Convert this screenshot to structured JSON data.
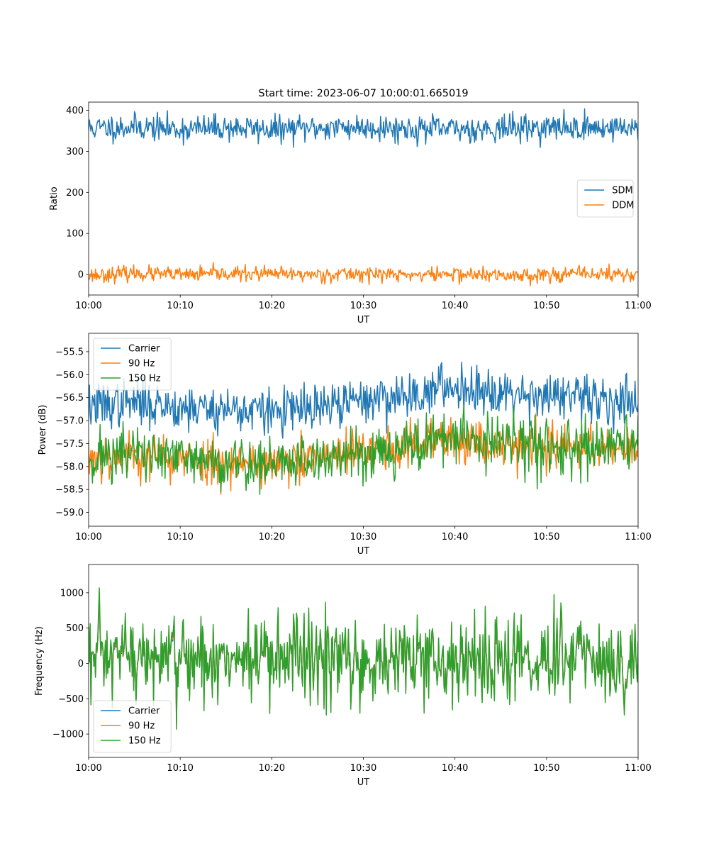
{
  "title": "Start time: 2023-06-07 10:00:01.665019",
  "colors": {
    "blue": "#1f77b4",
    "orange": "#ff7f0e",
    "green": "#2ca02c"
  },
  "x_ticks": [
    "10:00",
    "10:10",
    "10:20",
    "10:30",
    "10:40",
    "10:50",
    "11:00"
  ],
  "chart_data": [
    {
      "type": "line",
      "xlabel": "UT",
      "ylabel": "Ratio",
      "xlim": [
        "10:00",
        "11:00"
      ],
      "ylim": [
        -50,
        420
      ],
      "yticks": [
        0,
        100,
        200,
        300,
        400
      ],
      "ytick_labels": [
        "0",
        "100",
        "200",
        "300",
        "400"
      ],
      "legend": "center-right",
      "grid": false,
      "series": [
        {
          "name": "SDM",
          "color": "#1f77b4",
          "mean": 355,
          "noise": 16,
          "profile": "flat",
          "points": 720,
          "seed": 11,
          "x": [
            "10:00",
            "10:05",
            "10:10",
            "10:15",
            "10:20",
            "10:25",
            "10:30",
            "10:35",
            "10:40",
            "10:45",
            "10:50",
            "10:55",
            "11:00"
          ],
          "values": [
            356,
            360,
            354,
            358,
            353,
            357,
            359,
            355,
            354,
            356,
            358,
            357,
            360
          ]
        },
        {
          "name": "DDM",
          "color": "#ff7f0e",
          "mean": 0,
          "noise": 9,
          "profile": "flat",
          "points": 720,
          "seed": 23,
          "x": [
            "10:00",
            "10:05",
            "10:10",
            "10:15",
            "10:20",
            "10:25",
            "10:30",
            "10:35",
            "10:40",
            "10:45",
            "10:50",
            "10:55",
            "11:00"
          ],
          "values": [
            -2,
            3,
            -1,
            2,
            1,
            0,
            2,
            -1,
            1,
            -3,
            0,
            2,
            -1
          ]
        }
      ]
    },
    {
      "type": "line",
      "xlabel": "UT",
      "ylabel": "Power (dB)",
      "xlim": [
        "10:00",
        "11:00"
      ],
      "ylim": [
        -59.3,
        -55.1
      ],
      "yticks": [
        -59.0,
        -58.5,
        -58.0,
        -57.5,
        -57.0,
        -56.5,
        -56.0,
        -55.5
      ],
      "ytick_labels": [
        "−59.0",
        "−58.5",
        "−58.0",
        "−57.5",
        "−57.0",
        "−56.5",
        "−56.0",
        "−55.5"
      ],
      "legend": "top-left",
      "grid": false,
      "series": [
        {
          "name": "Carrier",
          "color": "#1f77b4",
          "noise": 0.25,
          "points": 720,
          "seed": 37,
          "x": [
            "10:00",
            "10:05",
            "10:10",
            "10:15",
            "10:20",
            "10:25",
            "10:30",
            "10:35",
            "10:40",
            "10:45",
            "10:50",
            "10:55",
            "11:00"
          ],
          "values": [
            -56.7,
            -56.6,
            -56.7,
            -56.75,
            -56.8,
            -56.75,
            -56.55,
            -56.45,
            -56.25,
            -56.35,
            -56.45,
            -56.55,
            -56.55
          ]
        },
        {
          "name": "90 Hz",
          "color": "#ff7f0e",
          "noise": 0.25,
          "points": 720,
          "seed": 53,
          "x": [
            "10:00",
            "10:05",
            "10:10",
            "10:15",
            "10:20",
            "10:25",
            "10:30",
            "10:35",
            "10:40",
            "10:45",
            "10:50",
            "10:55",
            "11:00"
          ],
          "values": [
            -57.8,
            -57.75,
            -57.85,
            -57.9,
            -57.95,
            -57.85,
            -57.7,
            -57.55,
            -57.4,
            -57.5,
            -57.55,
            -57.6,
            -57.5
          ]
        },
        {
          "name": "150 Hz",
          "color": "#2ca02c",
          "noise": 0.3,
          "points": 720,
          "seed": 71,
          "x": [
            "10:00",
            "10:05",
            "10:10",
            "10:15",
            "10:20",
            "10:25",
            "10:30",
            "10:35",
            "10:40",
            "10:45",
            "10:50",
            "10:55",
            "11:00"
          ],
          "values": [
            -57.8,
            -57.7,
            -57.85,
            -57.9,
            -57.95,
            -57.85,
            -57.7,
            -57.55,
            -57.35,
            -57.5,
            -57.55,
            -57.65,
            -57.55
          ]
        }
      ]
    },
    {
      "type": "line",
      "xlabel": "UT",
      "ylabel": "Frequency (Hz)",
      "xlim": [
        "10:00",
        "11:00"
      ],
      "ylim": [
        -1330,
        1400
      ],
      "yticks": [
        -1000,
        -500,
        0,
        500,
        1000
      ],
      "ytick_labels": [
        "−1000",
        "−500",
        "0",
        "500",
        "1000"
      ],
      "legend": "bottom-left",
      "grid": false,
      "series": [
        {
          "name": "Carrier",
          "color": "#1f77b4",
          "scale": 0.85,
          "points": 720,
          "seed": 97
        },
        {
          "name": "90 Hz",
          "color": "#ff7f0e",
          "scale": 0.92,
          "points": 720,
          "seed": 97
        },
        {
          "name": "150 Hz",
          "color": "#2ca02c",
          "scale": 1.0,
          "points": 720,
          "seed": 97,
          "x": [
            "10:00",
            "10:05",
            "10:10",
            "10:15",
            "10:20",
            "10:25",
            "10:30",
            "10:35",
            "10:40",
            "10:45",
            "10:50",
            "10:55",
            "11:00"
          ],
          "values": [
            50,
            80,
            40,
            100,
            20,
            60,
            30,
            70,
            40,
            90,
            50,
            80,
            60
          ],
          "noise": 330
        }
      ]
    }
  ]
}
